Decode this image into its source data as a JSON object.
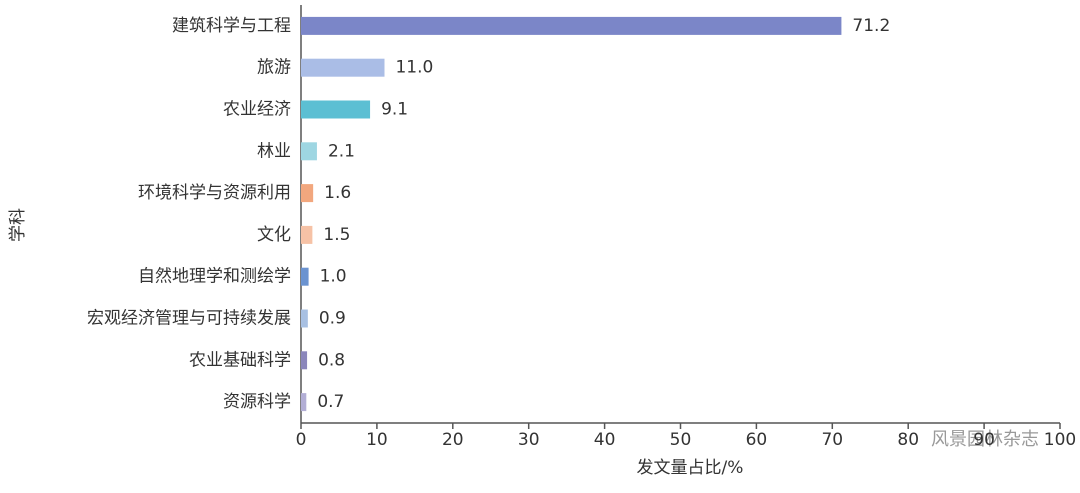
{
  "chart_data": {
    "type": "bar",
    "orientation": "horizontal",
    "categories": [
      "建筑科学与工程",
      "旅游",
      "农业经济",
      "林业",
      "环境科学与资源利用",
      "文化",
      "自然地理学和测绘学",
      "宏观经济管理与可持续发展",
      "农业基础科学",
      "资源科学"
    ],
    "values": [
      71.2,
      11.0,
      9.1,
      2.1,
      1.6,
      1.5,
      1.0,
      0.9,
      0.8,
      0.7
    ],
    "value_labels": [
      "71.2",
      "11.0",
      "9.1",
      "2.1",
      "1.6",
      "1.5",
      "1.0",
      "0.9",
      "0.8",
      "0.7"
    ],
    "colors": [
      "#7b86c8",
      "#aabde6",
      "#5cbfd3",
      "#9ed6e2",
      "#f2a77e",
      "#f6c2a6",
      "#6b93d0",
      "#a8c0e2",
      "#8b86bb",
      "#b2aed5"
    ],
    "xlabel": "发文量占比/%",
    "ylabel": "学科",
    "xlim": [
      0,
      100
    ],
    "xticks": [
      0,
      10,
      20,
      30,
      40,
      50,
      60,
      70,
      80,
      90,
      100
    ],
    "watermark": "风景园林杂志"
  }
}
